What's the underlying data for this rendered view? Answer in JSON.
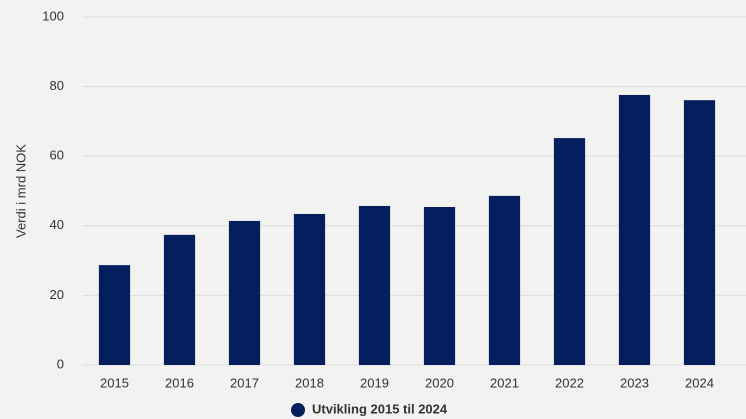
{
  "chart_data": {
    "type": "bar",
    "ylabel": "Verdi i mrd NOK",
    "categories": [
      "2015",
      "2016",
      "2017",
      "2018",
      "2019",
      "2020",
      "2021",
      "2022",
      "2023",
      "2024"
    ],
    "series": [
      {
        "name": "Utvikling 2015 til 2024",
        "color": "#041e5e",
        "values": [
          28.7,
          37.4,
          41.4,
          43.4,
          45.7,
          45.4,
          48.6,
          65.2,
          77.6,
          76.1
        ]
      }
    ],
    "ylim": [
      0,
      100
    ],
    "yticks": [
      0,
      20,
      40,
      60,
      80,
      100
    ],
    "grid": true,
    "legend": "bottom"
  }
}
